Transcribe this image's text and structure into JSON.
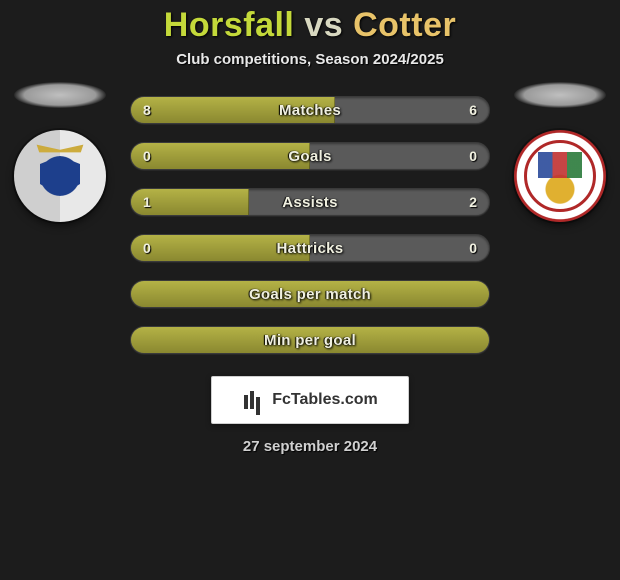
{
  "header": {
    "player_a": "Horsfall",
    "vs": "vs",
    "player_b": "Cotter",
    "subtitle": "Club competitions, Season 2024/2025"
  },
  "bars": [
    {
      "key": "matches",
      "label": "Matches",
      "left": "8",
      "right": "6",
      "left_pct": 57,
      "show_values": true
    },
    {
      "key": "goals",
      "label": "Goals",
      "left": "0",
      "right": "0",
      "left_pct": 50,
      "show_values": true
    },
    {
      "key": "assists",
      "label": "Assists",
      "left": "1",
      "right": "2",
      "left_pct": 33,
      "show_values": true
    },
    {
      "key": "hattricks",
      "label": "Hattricks",
      "left": "0",
      "right": "0",
      "left_pct": 50,
      "show_values": true
    },
    {
      "key": "gpm",
      "label": "Goals per match",
      "left": "",
      "right": "",
      "left_pct": 100,
      "show_values": false
    },
    {
      "key": "mpg",
      "label": "Min per goal",
      "left": "",
      "right": "",
      "left_pct": 100,
      "show_values": false
    }
  ],
  "badge": {
    "text": "FcTables.com"
  },
  "footer": {
    "date": "27 september 2024"
  },
  "style": {
    "bar_fill_color": "#a4a23a",
    "bar_empty_color": "#5a5a5a",
    "title_color_a": "#c4d93a",
    "title_color_b": "#e8c369",
    "bg_color": "#1c1c1c"
  }
}
